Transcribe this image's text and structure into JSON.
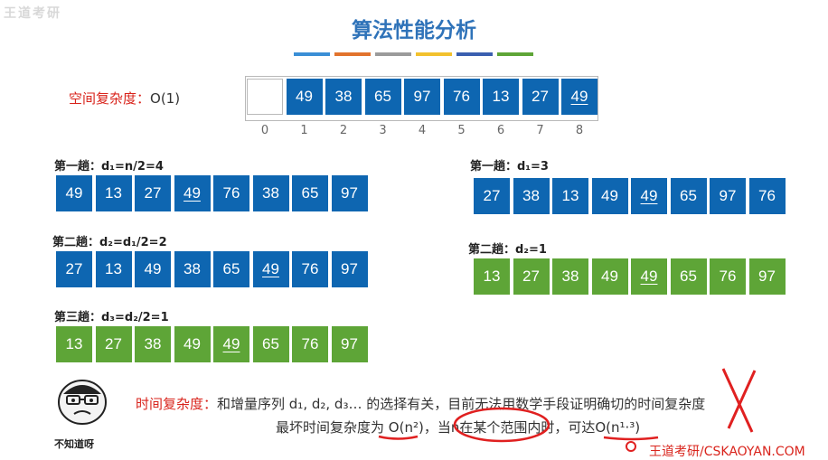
{
  "watermark": "王道考研",
  "title": "算法性能分析",
  "color_bars": [
    "#3a8fd6",
    "#e2732d",
    "#9b9b9b",
    "#f2c12e",
    "#3a5fb0",
    "#5ea537"
  ],
  "space": {
    "label": "空间复杂度：",
    "value": "O(1)"
  },
  "array": {
    "values": [
      "",
      "49",
      "38",
      "65",
      "97",
      "76",
      "13",
      "27",
      "49"
    ],
    "underline_index": 8,
    "indices": [
      "0",
      "1",
      "2",
      "3",
      "4",
      "5",
      "6",
      "7",
      "8"
    ]
  },
  "left_passes": [
    {
      "label": "第一趟：d₁=n/2=4",
      "values": [
        "49",
        "13",
        "27",
        "49",
        "76",
        "38",
        "65",
        "97"
      ],
      "color": "blue",
      "underline": [
        3
      ]
    },
    {
      "label": "第二趟：d₂=d₁/2=2",
      "values": [
        "27",
        "13",
        "49",
        "38",
        "65",
        "49",
        "76",
        "97"
      ],
      "color": "blue",
      "underline": [
        5
      ]
    },
    {
      "label": "第三趟：d₃=d₂/2=1",
      "values": [
        "13",
        "27",
        "38",
        "49",
        "49",
        "65",
        "76",
        "97"
      ],
      "color": "green",
      "underline": [
        4
      ]
    }
  ],
  "right_passes": [
    {
      "label": "第一趟：d₁=3",
      "values": [
        "27",
        "38",
        "13",
        "49",
        "49",
        "65",
        "97",
        "76"
      ],
      "color": "blue",
      "underline": [
        4
      ]
    },
    {
      "label": "第二趟：d₂=1",
      "values": [
        "13",
        "27",
        "38",
        "49",
        "49",
        "65",
        "76",
        "97"
      ],
      "color": "green",
      "underline": [
        4
      ]
    }
  ],
  "time": {
    "label": "时间复杂度：",
    "line1": "和增量序列 d₁, d₂, d₃… 的选择有关，目前无法用数学手段证明确切的时间复杂度",
    "line2_prefix": "最坏时间复杂度为 ",
    "worst": "O(n²)",
    "line2_mid": "，当n在某个范围内时，可达",
    "best": "O(n¹·³)"
  },
  "meme_caption": "不知道呀",
  "brand": "王道考研/CSKAOYAN.COM"
}
